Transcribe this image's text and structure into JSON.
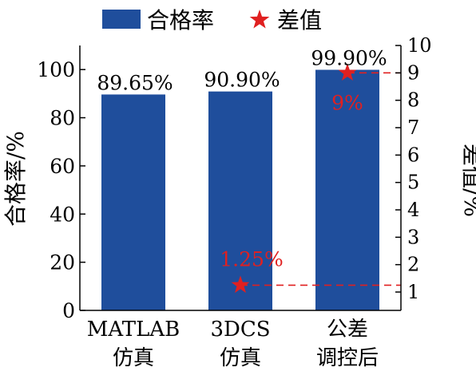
{
  "chart_data": {
    "type": "bar",
    "categories": [
      [
        "MATLAB",
        "仿真"
      ],
      [
        "3DCS",
        "仿真"
      ],
      [
        "公差",
        "调控后"
      ]
    ],
    "series": [
      {
        "name": "合格率",
        "axis": "left",
        "values": [
          89.65,
          90.9,
          99.9
        ],
        "labels": [
          "89.65%",
          "90.90%",
          "99.90%"
        ],
        "color": "#1f4e9c"
      },
      {
        "name": "差值",
        "axis": "right",
        "type": "scatter",
        "marker": "star",
        "points": [
          {
            "x": 1.5,
            "value": 1.25,
            "label": "1.25%"
          },
          {
            "x": 2.5,
            "value": 9,
            "label": "9%"
          }
        ],
        "color": "#e02020"
      }
    ],
    "ylabel": "合格率/%",
    "y2label": "差值/%",
    "ylim": [
      0,
      110
    ],
    "yticks": [
      0,
      20,
      40,
      60,
      80,
      100
    ],
    "y2lim": [
      0.33,
      10
    ],
    "y2ticks": [
      1,
      2,
      3,
      4,
      5,
      6,
      7,
      8,
      9,
      10
    ],
    "legend": {
      "position": "top"
    },
    "grid": false
  }
}
